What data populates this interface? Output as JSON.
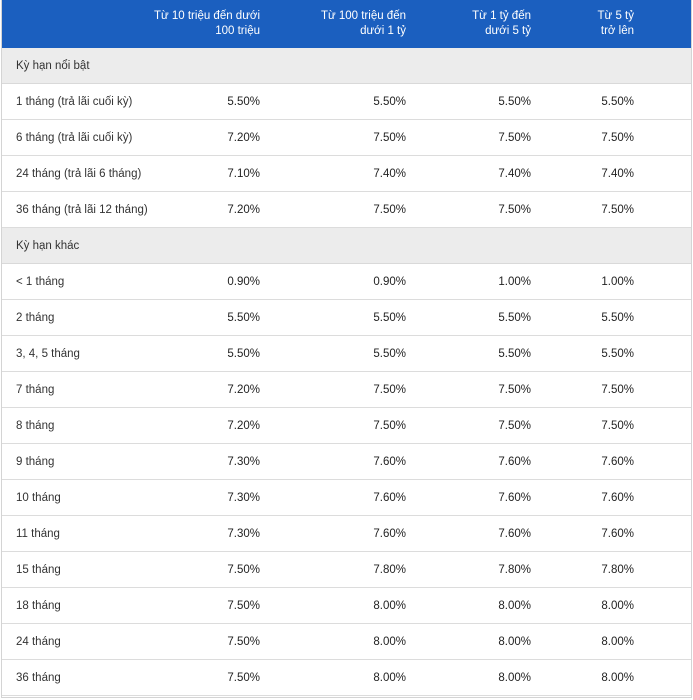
{
  "header": {
    "col1": [
      "Từ 10 triệu đến dưới",
      "100 triệu"
    ],
    "col2": [
      "Từ 100 triệu đến",
      "dưới 1 tỷ"
    ],
    "col3": [
      "Từ 1 tỷ đến",
      "dưới 5 tỷ"
    ],
    "col4": [
      "Từ 5 tỷ",
      "trở lên"
    ]
  },
  "sections": [
    {
      "title": "Kỳ hạn nổi bật",
      "rows": [
        {
          "term": "1 tháng (trả lãi cuối kỳ)",
          "values": [
            "5.50%",
            "5.50%",
            "5.50%",
            "5.50%"
          ]
        },
        {
          "term": "6 tháng (trả lãi cuối kỳ)",
          "values": [
            "7.20%",
            "7.50%",
            "7.50%",
            "7.50%"
          ]
        },
        {
          "term": "24 tháng (trả lãi 6 tháng)",
          "values": [
            "7.10%",
            "7.40%",
            "7.40%",
            "7.40%"
          ]
        },
        {
          "term": "36 tháng (trả lãi 12 tháng)",
          "values": [
            "7.20%",
            "7.50%",
            "7.50%",
            "7.50%"
          ]
        }
      ]
    },
    {
      "title": "Kỳ hạn khác",
      "rows": [
        {
          "term": "< 1 tháng",
          "values": [
            "0.90%",
            "0.90%",
            "1.00%",
            "1.00%"
          ]
        },
        {
          "term": "2 tháng",
          "values": [
            "5.50%",
            "5.50%",
            "5.50%",
            "5.50%"
          ]
        },
        {
          "term": "3, 4, 5 tháng",
          "values": [
            "5.50%",
            "5.50%",
            "5.50%",
            "5.50%"
          ]
        },
        {
          "term": "7 tháng",
          "values": [
            "7.20%",
            "7.50%",
            "7.50%",
            "7.50%"
          ]
        },
        {
          "term": "8 tháng",
          "values": [
            "7.20%",
            "7.50%",
            "7.50%",
            "7.50%"
          ]
        },
        {
          "term": "9 tháng",
          "values": [
            "7.30%",
            "7.60%",
            "7.60%",
            "7.60%"
          ]
        },
        {
          "term": "10 tháng",
          "values": [
            "7.30%",
            "7.60%",
            "7.60%",
            "7.60%"
          ]
        },
        {
          "term": "11 tháng",
          "values": [
            "7.30%",
            "7.60%",
            "7.60%",
            "7.60%"
          ]
        },
        {
          "term": "15 tháng",
          "values": [
            "7.50%",
            "7.80%",
            "7.80%",
            "7.80%"
          ]
        },
        {
          "term": "18 tháng",
          "values": [
            "7.50%",
            "8.00%",
            "8.00%",
            "8.00%"
          ]
        },
        {
          "term": "24 tháng",
          "values": [
            "7.50%",
            "8.00%",
            "8.00%",
            "8.00%"
          ]
        },
        {
          "term": "36 tháng",
          "values": [
            "7.50%",
            "8.00%",
            "8.00%",
            "8.00%"
          ]
        }
      ]
    }
  ],
  "colors": {
    "header_bg": "#1b5fbf",
    "section_bg": "#ececec"
  }
}
